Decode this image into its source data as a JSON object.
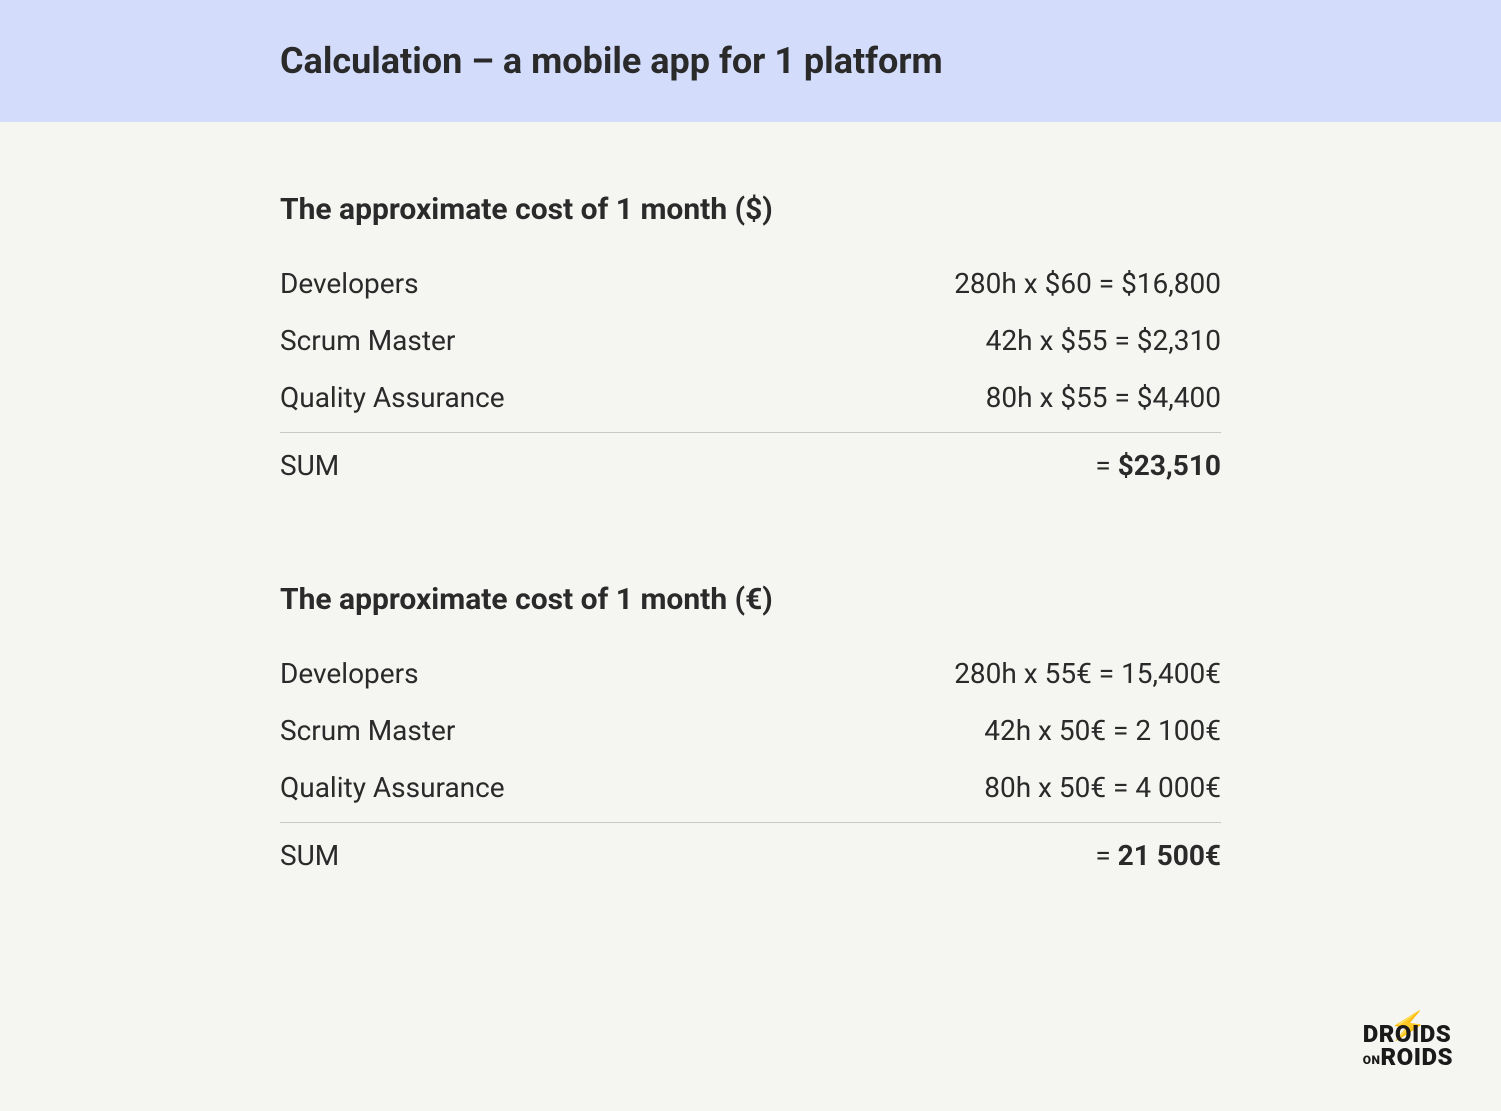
{
  "colors": {
    "header_bg": "#d3dcfb",
    "page_bg": "#f5f5f2",
    "text": "#2a2a2a",
    "divider": "#c8c8c4",
    "logo_accent": "#f5a623"
  },
  "header": {
    "title": "Calculation – a mobile app for 1 platform"
  },
  "sections": [
    {
      "title": "The approximate cost of 1 month ($)",
      "rows": [
        {
          "label": "Developers",
          "value": "280h x $60 = $16,800"
        },
        {
          "label": "Scrum Master",
          "value": "42h x $55 = $2,310"
        },
        {
          "label": "Quality Assurance",
          "value": "80h x $55 = $4,400"
        }
      ],
      "sum": {
        "label": "SUM",
        "eq": "= ",
        "amount": "$23,510"
      }
    },
    {
      "title": "The approximate cost of 1 month (€)",
      "rows": [
        {
          "label": "Developers",
          "value": "280h x 55€ = 15,400€"
        },
        {
          "label": "Scrum Master",
          "value": "42h x 50€ = 2 100€"
        },
        {
          "label": "Quality Assurance",
          "value": "80h x 50€ = 4 000€"
        }
      ],
      "sum": {
        "label": "SUM",
        "eq": "= ",
        "amount": "21 500€"
      }
    }
  ],
  "logo": {
    "line1": "DROIDS",
    "on": "ON",
    "line2_rest": "ROIDS"
  }
}
